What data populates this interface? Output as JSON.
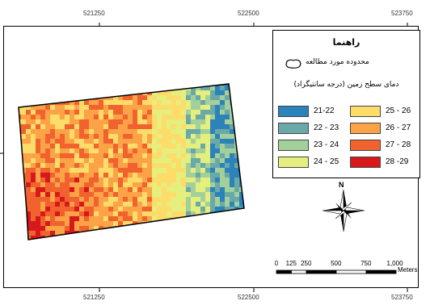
{
  "map": {
    "grid_ticks_top": [
      "521250",
      "522500",
      "523750"
    ],
    "grid_ticks_bottom": [
      "521250",
      "522500",
      "523750"
    ]
  },
  "legend": {
    "title": "راهنما",
    "study_area_label": "محدوده مورد مطالعه",
    "study_area_icon": "study-area-outline-icon",
    "classes_heading": "دمای سطح زمین (درجه سانتیگراد)",
    "classes": [
      {
        "label": "21-22",
        "color": "#2b83ba"
      },
      {
        "label": "22 - 23",
        "color": "#6aa9a7"
      },
      {
        "label": "23 - 24",
        "color": "#a3cf9b"
      },
      {
        "label": "24 - 25",
        "color": "#e4ef7e"
      },
      {
        "label": "25 - 26",
        "color": "#fddc6a"
      },
      {
        "label": "26 - 27",
        "color": "#fba346"
      },
      {
        "label": "27 - 28",
        "color": "#f2622e"
      },
      {
        "label": "28 -29",
        "color": "#d7191c"
      }
    ]
  },
  "north_arrow": {
    "label": "N",
    "icon": "north-arrow-icon"
  },
  "scale_bar": {
    "labels": [
      "0",
      "125",
      "250",
      "500",
      "750",
      "1,000"
    ],
    "values": [
      0,
      125,
      250,
      500,
      750,
      1000
    ],
    "unit": "Meters"
  }
}
